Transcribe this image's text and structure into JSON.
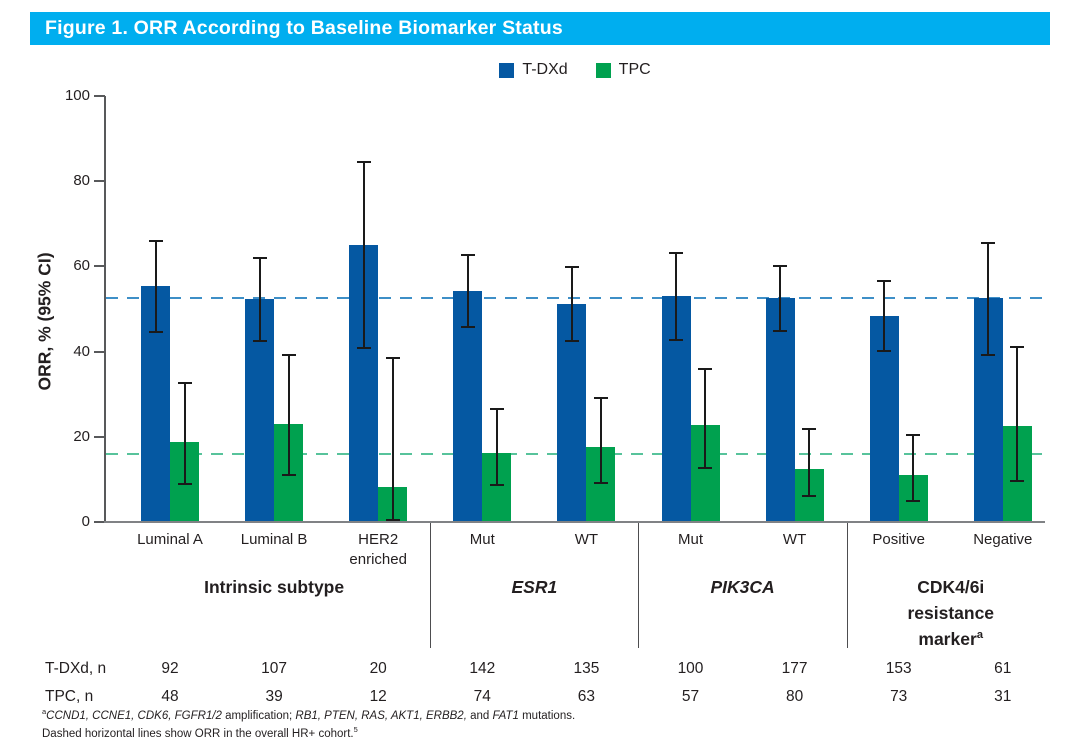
{
  "figure": {
    "title": "Figure 1. ORR According to Baseline Biomarker Status",
    "title_bar_color": "#00AEEF",
    "text_color": "#231F20",
    "axis_color": "#58595B",
    "baseline_color": "#808285",
    "error_bar_color": "#1A1A1A"
  },
  "chart_data": {
    "type": "bar",
    "title": "Figure 1. ORR According to Baseline Biomarker Status",
    "xlabel": "",
    "ylabel": "ORR, % (95% CI)",
    "ylim": [
      0,
      100
    ],
    "yticks": [
      0,
      20,
      40,
      60,
      80,
      100
    ],
    "grid": false,
    "legend_position": "top-center",
    "categories": [
      "Luminal A",
      "Luminal B",
      "HER2\nenriched",
      "Mut",
      "WT",
      "Mut",
      "WT",
      "Positive",
      "Negative"
    ],
    "groups": [
      {
        "label": "Intrinsic subtype",
        "style": "bold",
        "superscript": "",
        "start": 0,
        "end": 2
      },
      {
        "label": "ESR1",
        "style": "bold-italic",
        "superscript": "",
        "start": 3,
        "end": 4
      },
      {
        "label": "PIK3CA",
        "style": "bold-italic",
        "superscript": "",
        "start": 5,
        "end": 6
      },
      {
        "label": "CDK4/6i\nresistance\nmarker",
        "style": "bold",
        "superscript": "a",
        "start": 7,
        "end": 8
      }
    ],
    "series": [
      {
        "name": "T-DXd",
        "color": "#0558A2",
        "values": [
          55.4,
          52.3,
          65.0,
          54.2,
          51.1,
          53.0,
          52.5,
          48.4,
          52.5
        ],
        "ci_low": [
          44.7,
          42.4,
          40.8,
          45.7,
          42.4,
          42.8,
          44.9,
          40.2,
          39.3
        ],
        "ci_high": [
          65.9,
          62.0,
          84.6,
          62.6,
          59.8,
          63.1,
          60.1,
          56.6,
          65.4
        ]
      },
      {
        "name": "TPC",
        "color": "#00A14F",
        "values": [
          18.8,
          23.1,
          8.3,
          16.2,
          17.5,
          22.8,
          12.5,
          11.0,
          22.6
        ],
        "ci_low": [
          8.9,
          11.1,
          0.5,
          8.7,
          9.1,
          12.7,
          6.2,
          4.9,
          9.6
        ],
        "ci_high": [
          32.6,
          39.3,
          38.5,
          26.6,
          29.1,
          35.8,
          21.8,
          20.5,
          41.1
        ]
      }
    ],
    "reference_lines": [
      {
        "series": "T-DXd",
        "value": 52.5,
        "color": "#3E8FC7",
        "style": "dashed"
      },
      {
        "series": "TPC",
        "value": 16.0,
        "color": "#57C39B",
        "style": "dashed"
      }
    ]
  },
  "n_table": {
    "rows": [
      {
        "label": "T-DXd, n",
        "values": [
          "92",
          "107",
          "20",
          "142",
          "135",
          "100",
          "177",
          "153",
          "61"
        ]
      },
      {
        "label": "TPC, n",
        "values": [
          "48",
          "39",
          "12",
          "74",
          "63",
          "57",
          "80",
          "73",
          "31"
        ]
      }
    ]
  },
  "footnotes": [
    {
      "segments": [
        {
          "text": "a",
          "style": "sup"
        },
        {
          "text": "CCND1, CCNE1, CDK6, FGFR1/2",
          "style": "italic"
        },
        {
          "text": " amplification; ",
          "style": "normal"
        },
        {
          "text": "RB1, PTEN, RAS, AKT1, ERBB2,",
          "style": "italic"
        },
        {
          "text": " and ",
          "style": "normal"
        },
        {
          "text": "FAT1",
          "style": "italic"
        },
        {
          "text": " mutations.",
          "style": "normal"
        }
      ]
    },
    {
      "segments": [
        {
          "text": "Dashed horizontal lines show ORR in the overall HR+ cohort.",
          "style": "normal"
        },
        {
          "text": "5",
          "style": "sup"
        }
      ]
    }
  ]
}
